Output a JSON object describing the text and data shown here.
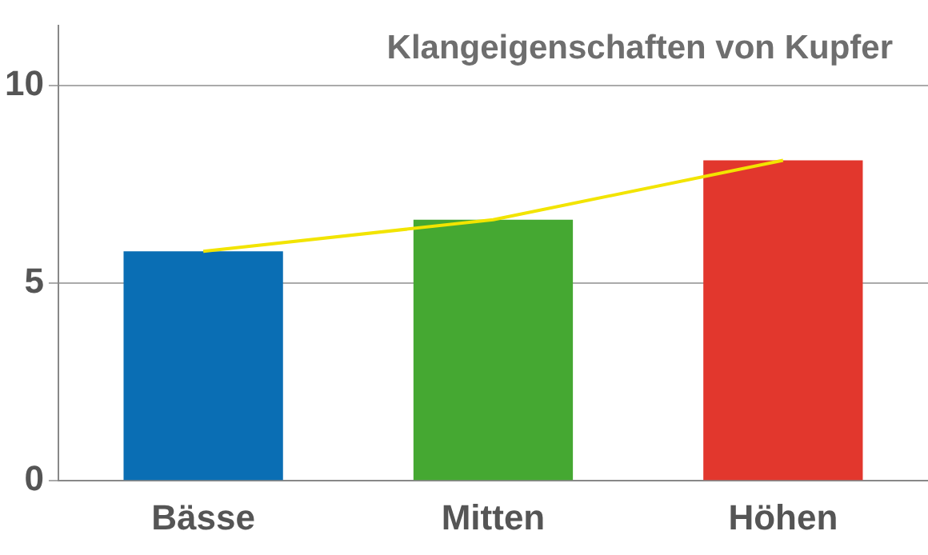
{
  "chart_data": {
    "type": "bar",
    "title": "Klangeigenschaften von Kupfer",
    "categories": [
      "Bässe",
      "Mitten",
      "Höhen"
    ],
    "series": [
      {
        "colors": [
          "#0a6eb4",
          "#45a832",
          "#e2372d"
        ],
        "values": [
          5.8,
          6.6,
          8.1
        ]
      },
      {
        "type": "line",
        "color": "#f2e400",
        "values": [
          5.8,
          6.6,
          8.1
        ],
        "marker": "none"
      }
    ],
    "ylim": [
      0,
      11.5
    ],
    "yticks": [
      0,
      5,
      10
    ],
    "grid": "y",
    "legend": false
  }
}
